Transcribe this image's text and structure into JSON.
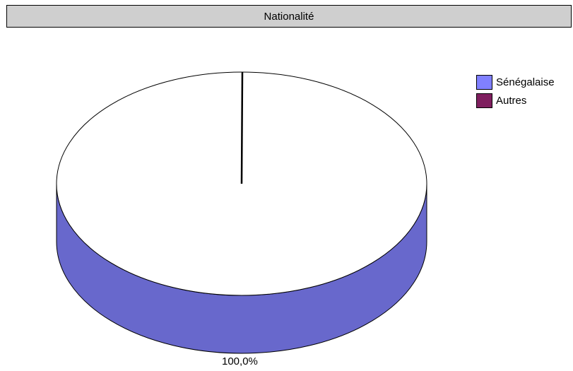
{
  "chart_data": {
    "type": "pie",
    "title": "Nationalité",
    "categories": [
      "Sénégalaise",
      "Autres"
    ],
    "values": [
      100.0,
      0.0
    ],
    "data_labels": [
      "100,0%"
    ],
    "colors": [
      "#8080ff",
      "#7f1f5f"
    ],
    "side_color": "#6868cc",
    "top_color": "#ffffff",
    "legend_position": "right"
  }
}
